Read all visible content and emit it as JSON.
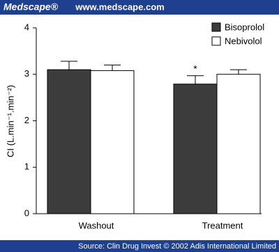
{
  "header": {
    "logo": "Medscape®",
    "url": "www.medscape.com"
  },
  "footer": {
    "source": "Source: Clin Drug Invest © 2002 Adis International Limited"
  },
  "chart_data": {
    "type": "bar",
    "y_label": "CI (L.min⁻¹.min⁻²)",
    "categories": [
      "Washout",
      "Treatment"
    ],
    "series": [
      {
        "name": "Bisoprolol",
        "color": "#3c3c3c",
        "values": [
          3.1,
          2.79
        ],
        "errors": [
          0.18,
          0.18
        ]
      },
      {
        "name": "Nebivolol",
        "color": "#ffffff",
        "values": [
          3.08,
          3.0
        ],
        "errors": [
          0.12,
          0.1
        ]
      }
    ],
    "annotation": "*",
    "ylim": [
      0,
      4
    ],
    "yticks": [
      0,
      1,
      2,
      3,
      4
    ],
    "grid": false,
    "legend": "top-right"
  }
}
